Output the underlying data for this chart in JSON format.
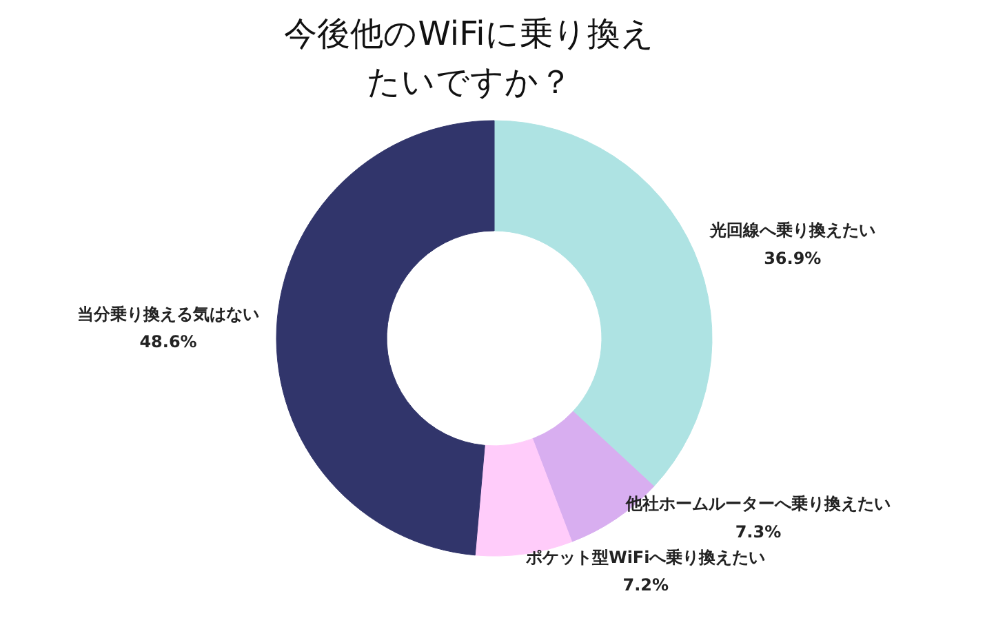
{
  "chart_data": {
    "type": "donut",
    "title": "今後他のWiFiに乗り換えたいですか？",
    "categories": [
      "光回線へ乗り換えたい",
      "他社ホームルーターへ乗り換えたい",
      "ポケット型WiFiへ乗り換えたい",
      "当分乗り換える気はない"
    ],
    "values": [
      36.9,
      7.3,
      7.2,
      48.6
    ],
    "colors": [
      "#aee3e3",
      "#d8aef0",
      "#ffccfa",
      "#31356b"
    ],
    "value_labels": [
      "36.9%",
      "7.3%",
      "7.2%",
      "48.6%"
    ]
  }
}
